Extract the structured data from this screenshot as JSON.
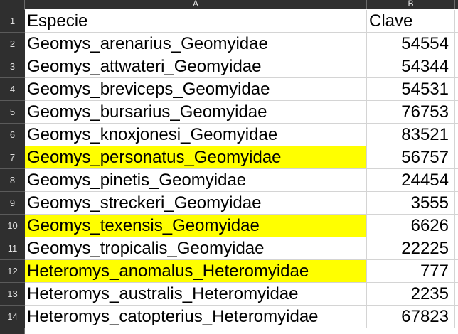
{
  "columns": {
    "a": "A",
    "b": "B"
  },
  "rows": [
    {
      "num": "1",
      "especie": "Especie",
      "clave": "Clave",
      "highlight": false,
      "header": true
    },
    {
      "num": "2",
      "especie": "Geomys_arenarius_Geomyidae",
      "clave": "54554",
      "highlight": false
    },
    {
      "num": "3",
      "especie": "Geomys_attwateri_Geomyidae",
      "clave": "54344",
      "highlight": false
    },
    {
      "num": "4",
      "especie": "Geomys_breviceps_Geomyidae",
      "clave": "54531",
      "highlight": false
    },
    {
      "num": "5",
      "especie": "Geomys_bursarius_Geomyidae",
      "clave": "76753",
      "highlight": false
    },
    {
      "num": "6",
      "especie": "Geomys_knoxjonesi_Geomyidae",
      "clave": "83521",
      "highlight": false
    },
    {
      "num": "7",
      "especie": "Geomys_personatus_Geomyidae",
      "clave": "56757",
      "highlight": true
    },
    {
      "num": "8",
      "especie": "Geomys_pinetis_Geomyidae",
      "clave": "24454",
      "highlight": false
    },
    {
      "num": "9",
      "especie": "Geomys_streckeri_Geomyidae",
      "clave": "3555",
      "highlight": false
    },
    {
      "num": "10",
      "especie": "Geomys_texensis_Geomyidae",
      "clave": "6626",
      "highlight": true
    },
    {
      "num": "11",
      "especie": "Geomys_tropicalis_Geomyidae",
      "clave": "22225",
      "highlight": false
    },
    {
      "num": "12",
      "especie": "Heteromys_anomalus_Heteromyidae",
      "clave": "777",
      "highlight": true
    },
    {
      "num": "13",
      "especie": "Heteromys_australis_Heteromyidae",
      "clave": "2235",
      "highlight": false
    },
    {
      "num": "14",
      "especie": "Heteromys_catopterius_Heteromyidae",
      "clave": "67823",
      "highlight": false
    }
  ],
  "colors": {
    "highlight": "#ffff00",
    "header_bg": "#2f2f2f",
    "gridline": "#d4d4d4"
  }
}
